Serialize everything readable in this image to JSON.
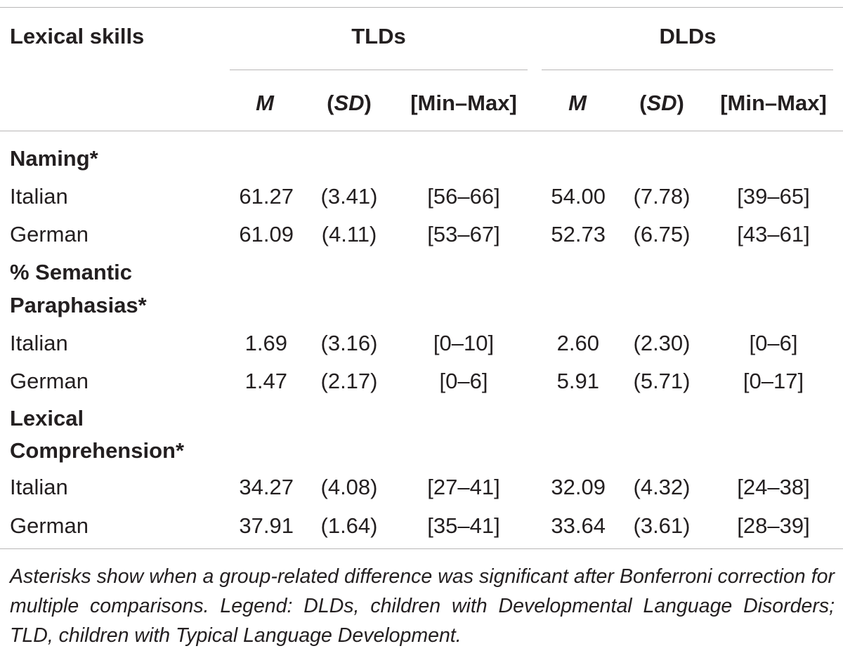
{
  "table": {
    "header": {
      "row_label": "Lexical skills",
      "groups": [
        "TLDs",
        "DLDs"
      ],
      "tld_cols": {
        "m": "M",
        "sd_open": "(",
        "sd": "SD",
        "sd_close": ")",
        "range": "[Min–Max]"
      },
      "dld_cols": {
        "m": "M",
        "sd_open": "(",
        "sd": "SD",
        "sd_close": ")",
        "range": "[Min–Max]"
      }
    },
    "sections": [
      {
        "title_lines": [
          "Naming*"
        ],
        "rows": [
          {
            "label": "Italian",
            "tld_m": "61.27",
            "tld_sd": "(3.41)",
            "tld_range": "[56–66]",
            "dld_m": "54.00",
            "dld_sd": "(7.78)",
            "dld_range": "[39–65]"
          },
          {
            "label": "German",
            "tld_m": "61.09",
            "tld_sd": "(4.11)",
            "tld_range": "[53–67]",
            "dld_m": "52.73",
            "dld_sd": "(6.75)",
            "dld_range": "[43–61]"
          }
        ]
      },
      {
        "title_lines": [
          "% Semantic",
          "Paraphasias*"
        ],
        "rows": [
          {
            "label": "Italian",
            "tld_m": "1.69",
            "tld_sd": "(3.16)",
            "tld_range": "[0–10]",
            "dld_m": "2.60",
            "dld_sd": "(2.30)",
            "dld_range": "[0–6]"
          },
          {
            "label": "German",
            "tld_m": "1.47",
            "tld_sd": "(2.17)",
            "tld_range": "[0–6]",
            "dld_m": "5.91",
            "dld_sd": "(5.71)",
            "dld_range": "[0–17]"
          }
        ]
      },
      {
        "title_lines": [
          "Lexical",
          "Comprehension*"
        ],
        "rows": [
          {
            "label": "Italian",
            "tld_m": "34.27",
            "tld_sd": "(4.08)",
            "tld_range": "[27–41]",
            "dld_m": "32.09",
            "dld_sd": "(4.32)",
            "dld_range": "[24–38]"
          },
          {
            "label": "German",
            "tld_m": "37.91",
            "tld_sd": "(1.64)",
            "tld_range": "[35–41]",
            "dld_m": "33.64",
            "dld_sd": "(3.61)",
            "dld_range": "[28–39]"
          }
        ]
      }
    ],
    "note": "Asterisks show when a group-related difference was significant after Bonferroni correction for multiple comparisons. Legend: DLDs, children with Developmental Language Disorders; TLD, children with Typical Language Development."
  }
}
